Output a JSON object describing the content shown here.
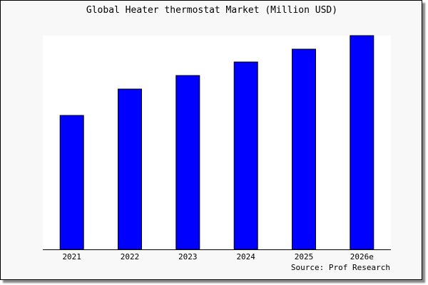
{
  "chart_data": {
    "type": "bar",
    "title": "Global Heater thermostat Market (Million USD)",
    "categories": [
      "2021",
      "2022",
      "2023",
      "2024",
      "2025",
      "2026e"
    ],
    "values": [
      188,
      225,
      244,
      263,
      281,
      300
    ],
    "ylim": [
      0,
      300
    ],
    "xlabel": "",
    "ylabel": "",
    "grid": false,
    "bar_color": "#0000ff",
    "source": "Source: Prof Research"
  }
}
